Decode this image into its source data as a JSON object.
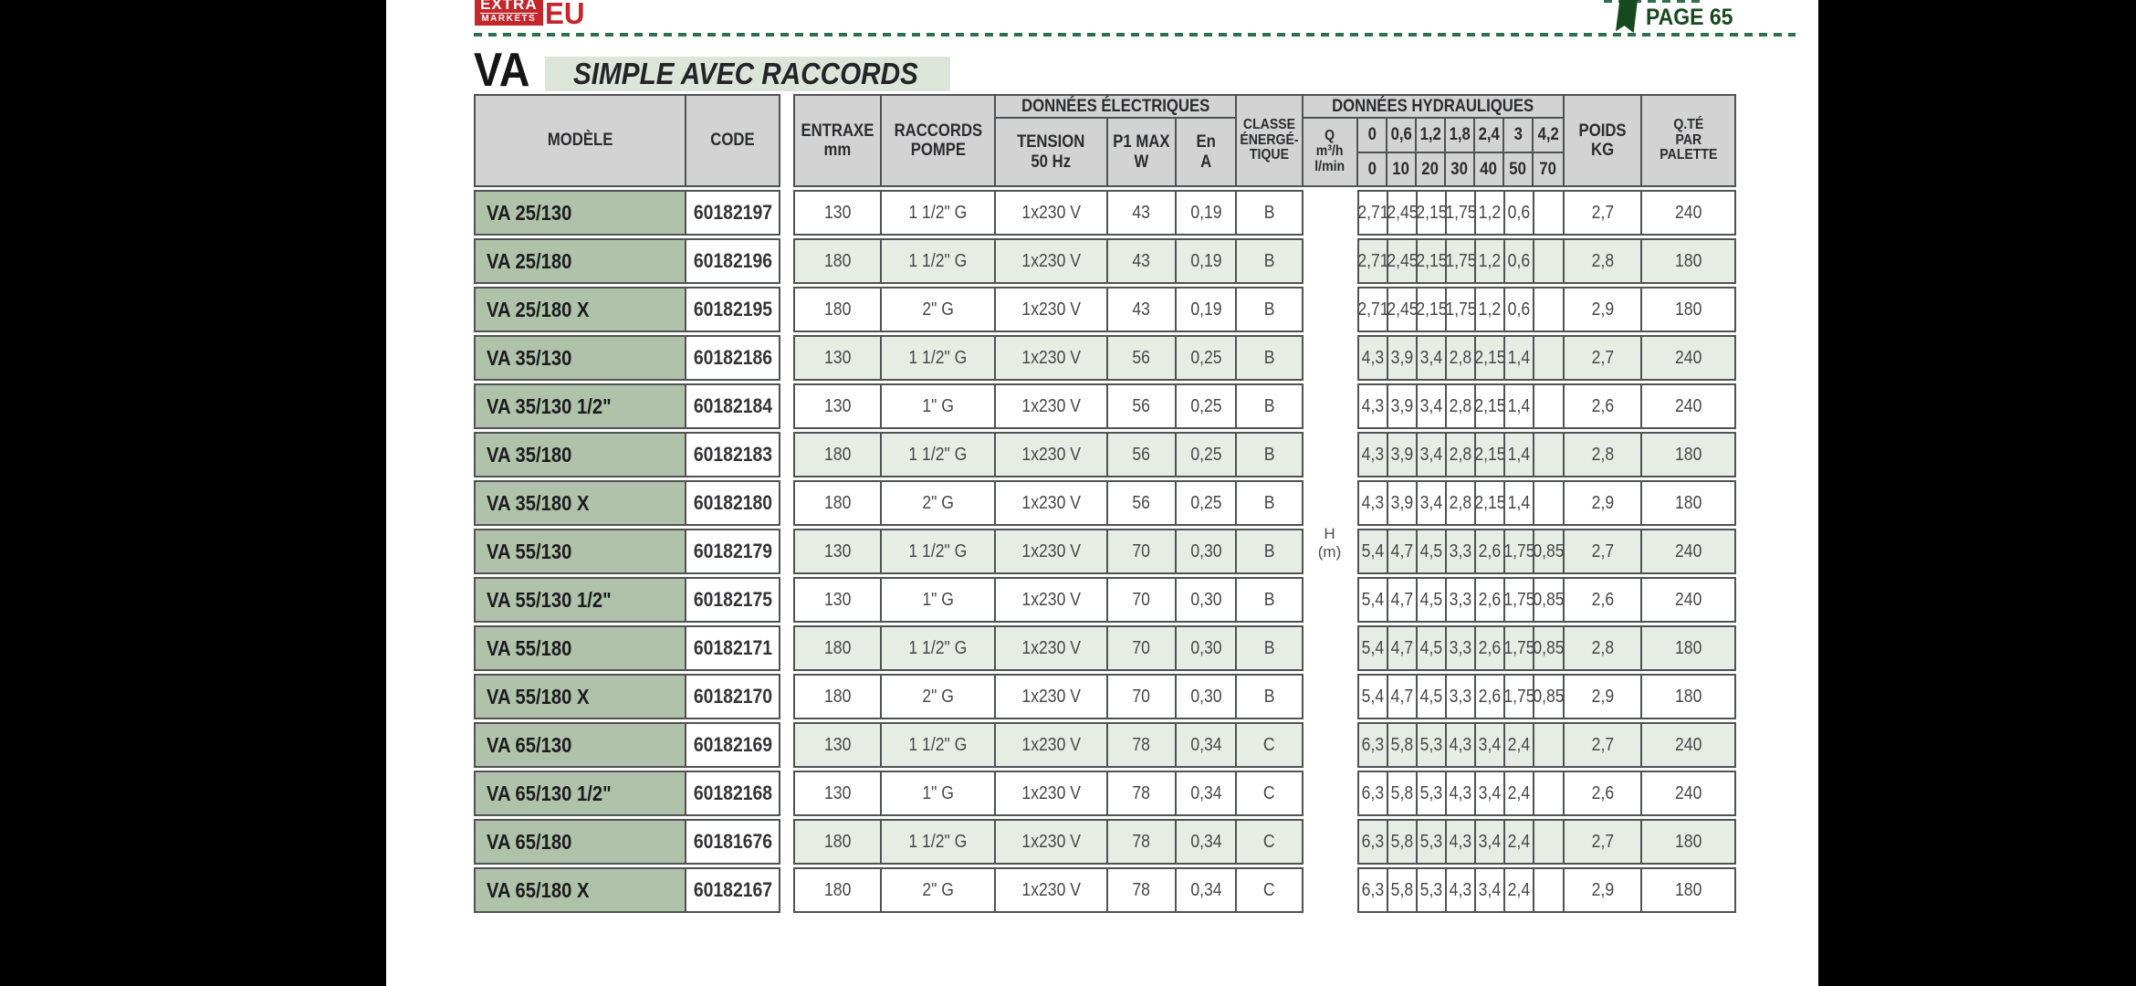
{
  "page": {
    "brand": {
      "line1": "EXTRA",
      "line2": "MARKETS",
      "suffix": "EU"
    },
    "page_label": "PAGE 65"
  },
  "title": {
    "main": "VA",
    "subtitle": "SIMPLE AVEC RACCORDS"
  },
  "colors": {
    "brand_red": "#c4262b",
    "page_green": "#17491f",
    "dash_green": "#2e6f4f",
    "model_cell_green": "#b0c2aa",
    "row_tint_green": "#e7ede4",
    "header_gray": "#d2d3d2",
    "border_gray": "#515254"
  },
  "table": {
    "header": {
      "modele": "MODÈLE",
      "code": "CODE",
      "entraxe": "ENTRAXE\nmm",
      "raccords": "RACCORDS\nPOMPE",
      "donnees_electriques": "DONNÉES ÉLECTRIQUES",
      "tension": "TENSION\n50 Hz",
      "p1": "P1 MAX\nW",
      "en": "En\nA",
      "classe": "CLASSE\nÉNERGÉ-\nTIQUE",
      "donnees_hydrauliques": "DONNÉES HYDRAULIQUES",
      "q": "Q\nm³/h\nl/min",
      "m3h": [
        "0",
        "0,6",
        "1,2",
        "1,8",
        "2,4",
        "3",
        "4,2"
      ],
      "lmin": [
        "0",
        "10",
        "20",
        "30",
        "40",
        "50",
        "70"
      ],
      "poids": "POIDS\nKG",
      "qte": "Q.TÉ\nPAR\nPALETTE",
      "h_unit": "H\n(m)"
    },
    "rows": [
      {
        "model": "VA 25/130",
        "code": "60182197",
        "entraxe": "130",
        "raccords": "1 1/2\" G",
        "tension": "1x230 V",
        "p1": "43",
        "en": "0,19",
        "classe": "B",
        "h": [
          "2,71",
          "2,45",
          "2,15",
          "1,75",
          "1,2",
          "0,6",
          ""
        ],
        "poids": "2,7",
        "palette": "240"
      },
      {
        "model": "VA 25/180",
        "code": "60182196",
        "entraxe": "180",
        "raccords": "1 1/2\" G",
        "tension": "1x230 V",
        "p1": "43",
        "en": "0,19",
        "classe": "B",
        "h": [
          "2,71",
          "2,45",
          "2,15",
          "1,75",
          "1,2",
          "0,6",
          ""
        ],
        "poids": "2,8",
        "palette": "180"
      },
      {
        "model": "VA 25/180 X",
        "code": "60182195",
        "entraxe": "180",
        "raccords": "2\" G",
        "tension": "1x230 V",
        "p1": "43",
        "en": "0,19",
        "classe": "B",
        "h": [
          "2,71",
          "2,45",
          "2,15",
          "1,75",
          "1,2",
          "0,6",
          ""
        ],
        "poids": "2,9",
        "palette": "180"
      },
      {
        "model": "VA 35/130",
        "code": "60182186",
        "entraxe": "130",
        "raccords": "1 1/2\" G",
        "tension": "1x230 V",
        "p1": "56",
        "en": "0,25",
        "classe": "B",
        "h": [
          "4,3",
          "3,9",
          "3,4",
          "2,8",
          "2,15",
          "1,4",
          ""
        ],
        "poids": "2,7",
        "palette": "240"
      },
      {
        "model": "VA 35/130 1/2\"",
        "code": "60182184",
        "entraxe": "130",
        "raccords": "1\" G",
        "tension": "1x230 V",
        "p1": "56",
        "en": "0,25",
        "classe": "B",
        "h": [
          "4,3",
          "3,9",
          "3,4",
          "2,8",
          "2,15",
          "1,4",
          ""
        ],
        "poids": "2,6",
        "palette": "240"
      },
      {
        "model": "VA 35/180",
        "code": "60182183",
        "entraxe": "180",
        "raccords": "1 1/2\" G",
        "tension": "1x230 V",
        "p1": "56",
        "en": "0,25",
        "classe": "B",
        "h": [
          "4,3",
          "3,9",
          "3,4",
          "2,8",
          "2,15",
          "1,4",
          ""
        ],
        "poids": "2,8",
        "palette": "180"
      },
      {
        "model": "VA 35/180 X",
        "code": "60182180",
        "entraxe": "180",
        "raccords": "2\" G",
        "tension": "1x230 V",
        "p1": "56",
        "en": "0,25",
        "classe": "B",
        "h": [
          "4,3",
          "3,9",
          "3,4",
          "2,8",
          "2,15",
          "1,4",
          ""
        ],
        "poids": "2,9",
        "palette": "180"
      },
      {
        "model": "VA 55/130",
        "code": "60182179",
        "entraxe": "130",
        "raccords": "1 1/2\" G",
        "tension": "1x230 V",
        "p1": "70",
        "en": "0,30",
        "classe": "B",
        "h": [
          "5,4",
          "4,7",
          "4,5",
          "3,3",
          "2,6",
          "1,75",
          "0,85"
        ],
        "poids": "2,7",
        "palette": "240"
      },
      {
        "model": "VA 55/130 1/2\"",
        "code": "60182175",
        "entraxe": "130",
        "raccords": "1\" G",
        "tension": "1x230 V",
        "p1": "70",
        "en": "0,30",
        "classe": "B",
        "h": [
          "5,4",
          "4,7",
          "4,5",
          "3,3",
          "2,6",
          "1,75",
          "0,85"
        ],
        "poids": "2,6",
        "palette": "240"
      },
      {
        "model": "VA 55/180",
        "code": "60182171",
        "entraxe": "180",
        "raccords": "1 1/2\" G",
        "tension": "1x230 V",
        "p1": "70",
        "en": "0,30",
        "classe": "B",
        "h": [
          "5,4",
          "4,7",
          "4,5",
          "3,3",
          "2,6",
          "1,75",
          "0,85"
        ],
        "poids": "2,8",
        "palette": "180"
      },
      {
        "model": "VA 55/180 X",
        "code": "60182170",
        "entraxe": "180",
        "raccords": "2\" G",
        "tension": "1x230 V",
        "p1": "70",
        "en": "0,30",
        "classe": "B",
        "h": [
          "5,4",
          "4,7",
          "4,5",
          "3,3",
          "2,6",
          "1,75",
          "0,85"
        ],
        "poids": "2,9",
        "palette": "180"
      },
      {
        "model": "VA 65/130",
        "code": "60182169",
        "entraxe": "130",
        "raccords": "1 1/2\" G",
        "tension": "1x230 V",
        "p1": "78",
        "en": "0,34",
        "classe": "C",
        "h": [
          "6,3",
          "5,8",
          "5,3",
          "4,3",
          "3,4",
          "2,4",
          ""
        ],
        "poids": "2,7",
        "palette": "240"
      },
      {
        "model": "VA 65/130 1/2\"",
        "code": "60182168",
        "entraxe": "130",
        "raccords": "1\" G",
        "tension": "1x230 V",
        "p1": "78",
        "en": "0,34",
        "classe": "C",
        "h": [
          "6,3",
          "5,8",
          "5,3",
          "4,3",
          "3,4",
          "2,4",
          ""
        ],
        "poids": "2,6",
        "palette": "240"
      },
      {
        "model": "VA 65/180",
        "code": "60181676",
        "entraxe": "180",
        "raccords": "1 1/2\" G",
        "tension": "1x230 V",
        "p1": "78",
        "en": "0,34",
        "classe": "C",
        "h": [
          "6,3",
          "5,8",
          "5,3",
          "4,3",
          "3,4",
          "2,4",
          ""
        ],
        "poids": "2,7",
        "palette": "180"
      },
      {
        "model": "VA 65/180 X",
        "code": "60182167",
        "entraxe": "180",
        "raccords": "2\" G",
        "tension": "1x230 V",
        "p1": "78",
        "en": "0,34",
        "classe": "C",
        "h": [
          "6,3",
          "5,8",
          "5,3",
          "4,3",
          "3,4",
          "2,4",
          ""
        ],
        "poids": "2,9",
        "palette": "180"
      }
    ]
  }
}
